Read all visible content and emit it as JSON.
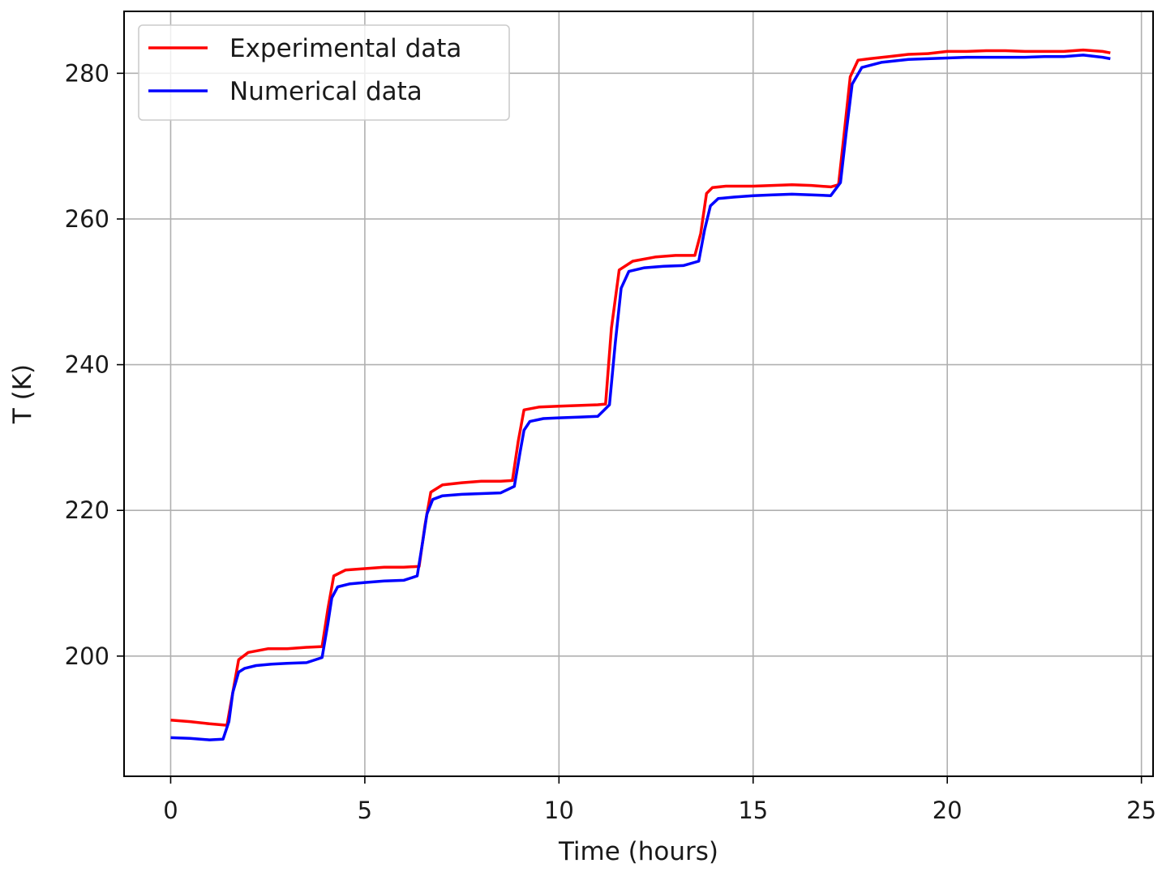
{
  "chart_data": {
    "type": "line",
    "title": "",
    "xlabel": "Time (hours)",
    "ylabel": "T (K)",
    "xlim": [
      -1.2,
      25.3
    ],
    "ylim": [
      183.5,
      288.5
    ],
    "xticks": [
      0,
      5,
      10,
      15,
      20,
      25
    ],
    "yticks": [
      200,
      220,
      240,
      260,
      280
    ],
    "grid": true,
    "legend": {
      "position": "top-left",
      "entries": [
        "Experimental data",
        "Numerical data"
      ]
    },
    "series": [
      {
        "name": "Experimental data",
        "color": "#ff0000",
        "x": [
          0.0,
          0.5,
          1.0,
          1.45,
          1.6,
          1.75,
          2.0,
          2.5,
          3.0,
          3.5,
          3.9,
          4.05,
          4.2,
          4.5,
          5.0,
          5.5,
          6.0,
          6.4,
          6.55,
          6.7,
          7.0,
          7.5,
          8.0,
          8.5,
          8.8,
          8.95,
          9.1,
          9.5,
          10.0,
          10.5,
          11.0,
          11.2,
          11.35,
          11.55,
          11.9,
          12.5,
          13.0,
          13.5,
          13.65,
          13.8,
          13.95,
          14.3,
          15.0,
          15.5,
          16.0,
          16.5,
          17.0,
          17.2,
          17.35,
          17.5,
          17.7,
          18.0,
          18.5,
          19.0,
          19.5,
          20.0,
          20.5,
          21.0,
          21.5,
          22.0,
          22.5,
          23.0,
          23.5,
          24.0,
          24.2
        ],
        "y": [
          191.2,
          191.0,
          190.7,
          190.5,
          195.0,
          199.5,
          200.5,
          201.0,
          201.0,
          201.2,
          201.3,
          206.5,
          211.0,
          211.8,
          212.0,
          212.2,
          212.2,
          212.3,
          218.0,
          222.5,
          223.5,
          223.8,
          224.0,
          224.0,
          224.1,
          229.5,
          233.8,
          234.2,
          234.3,
          234.4,
          234.5,
          234.6,
          245.0,
          253.0,
          254.2,
          254.8,
          255.0,
          255.0,
          258.0,
          263.5,
          264.3,
          264.5,
          264.5,
          264.6,
          264.7,
          264.6,
          264.4,
          264.7,
          272.0,
          279.5,
          281.8,
          282.0,
          282.3,
          282.6,
          282.7,
          283.0,
          283.0,
          283.1,
          283.1,
          283.0,
          283.0,
          283.0,
          283.2,
          283.0,
          282.8
        ]
      },
      {
        "name": "Numerical data",
        "color": "#0000ff",
        "x": [
          0.0,
          0.5,
          1.0,
          1.35,
          1.5,
          1.6,
          1.75,
          1.9,
          2.2,
          2.6,
          3.0,
          3.5,
          3.9,
          4.05,
          4.15,
          4.3,
          4.6,
          5.0,
          5.5,
          6.0,
          6.35,
          6.5,
          6.6,
          6.75,
          7.0,
          7.5,
          8.0,
          8.5,
          8.85,
          9.0,
          9.1,
          9.25,
          9.6,
          10.0,
          10.5,
          11.0,
          11.3,
          11.45,
          11.6,
          11.8,
          12.2,
          12.7,
          13.2,
          13.6,
          13.75,
          13.9,
          14.1,
          14.5,
          15.0,
          15.5,
          16.0,
          16.5,
          17.0,
          17.25,
          17.4,
          17.55,
          17.8,
          18.3,
          19.0,
          19.5,
          20.0,
          20.5,
          21.0,
          21.5,
          22.0,
          22.5,
          23.0,
          23.5,
          24.0,
          24.2
        ],
        "y": [
          188.8,
          188.7,
          188.5,
          188.6,
          191.0,
          195.0,
          197.8,
          198.3,
          198.7,
          198.9,
          199.0,
          199.1,
          199.8,
          204.5,
          208.0,
          209.5,
          209.9,
          210.1,
          210.3,
          210.4,
          211.0,
          216.0,
          219.5,
          221.5,
          222.0,
          222.2,
          222.3,
          222.4,
          223.3,
          228.0,
          231.0,
          232.2,
          232.6,
          232.7,
          232.8,
          232.9,
          234.5,
          243.0,
          250.5,
          252.8,
          253.3,
          253.5,
          253.6,
          254.2,
          258.5,
          261.8,
          262.8,
          263.0,
          263.2,
          263.3,
          263.4,
          263.3,
          263.2,
          265.0,
          272.0,
          278.5,
          280.8,
          281.5,
          281.9,
          282.0,
          282.1,
          282.2,
          282.2,
          282.2,
          282.2,
          282.3,
          282.3,
          282.5,
          282.2,
          282.0
        ]
      }
    ]
  }
}
